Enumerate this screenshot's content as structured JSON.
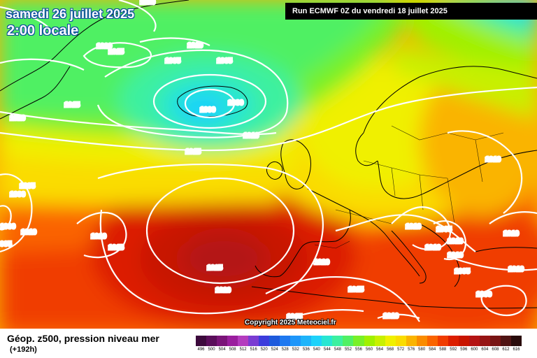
{
  "header": {
    "date_title": "samedi 26 juillet 2025",
    "time_title": "2:00 locale",
    "run_info": "Run ECMWF 0Z du vendredi 18 juillet 2025"
  },
  "copyright": "Copyright 2025 Meteociel.fr",
  "footer": {
    "parameter": "Géop. z500, pression niveau mer",
    "lead_time": "(+192h)"
  },
  "legend": {
    "labels": [
      "496",
      "500",
      "504",
      "508",
      "512",
      "516",
      "520",
      "524",
      "528",
      "532",
      "536",
      "540",
      "544",
      "548",
      "552",
      "556",
      "560",
      "564",
      "568",
      "572",
      "576",
      "580",
      "584",
      "588",
      "592",
      "596",
      "600",
      "604",
      "608",
      "612",
      "616"
    ],
    "colors": [
      "#3c0a3c",
      "#5a0e5a",
      "#7a1478",
      "#9a1e9e",
      "#b43cbe",
      "#7a3cd2",
      "#3c3cdc",
      "#1e5adc",
      "#1e78f0",
      "#1e96fa",
      "#1eb4fa",
      "#1ed2fa",
      "#28e6d2",
      "#3cf0a0",
      "#50f064",
      "#78f028",
      "#a0f000",
      "#c8f000",
      "#f0f000",
      "#fadc00",
      "#fab400",
      "#fa8c00",
      "#fa6400",
      "#f03c00",
      "#dc1e00",
      "#c81400",
      "#b41414",
      "#961414",
      "#781414",
      "#501414",
      "#280a0a"
    ]
  },
  "pressure_labels": [
    {
      "text": "1010",
      "id": "iso-1010-top"
    },
    {
      "text": "1020",
      "id": "iso-1020-a"
    },
    {
      "text": "1015",
      "id": "iso-1015-a"
    },
    {
      "text": "1010",
      "id": "iso-1010-b"
    },
    {
      "text": "1005",
      "id": "iso-1005-a"
    },
    {
      "text": "1005",
      "id": "iso-1005-b"
    },
    {
      "text": "1015",
      "id": "iso-1015-b"
    },
    {
      "text": "1010",
      "id": "iso-1010-c"
    },
    {
      "text": "1000",
      "id": "iso-1000-a"
    },
    {
      "text": "1000",
      "id": "iso-1000-b"
    },
    {
      "text": "1010",
      "id": "iso-1010-d"
    },
    {
      "text": "1015",
      "id": "iso-1015-c"
    },
    {
      "text": "1005",
      "id": "iso-1005-c"
    },
    {
      "text": "1000",
      "id": "iso-1000-c"
    },
    {
      "text": "1000",
      "id": "iso-1000-d"
    },
    {
      "text": "1010",
      "id": "iso-1010-e"
    },
    {
      "text": "005",
      "id": "iso-005"
    },
    {
      "text": "1010",
      "id": "iso-1010-f"
    },
    {
      "text": "1015",
      "id": "iso-1015-d"
    },
    {
      "text": "1025",
      "id": "iso-1025"
    },
    {
      "text": "1020",
      "id": "iso-1020-b"
    },
    {
      "text": "1020",
      "id": "iso-1020-c"
    },
    {
      "text": "1015",
      "id": "iso-1015-e"
    },
    {
      "text": "1015",
      "id": "iso-1015-f"
    },
    {
      "text": "1010",
      "id": "iso-1010-g"
    },
    {
      "text": "1010",
      "id": "iso-1010-h"
    },
    {
      "text": "1005",
      "id": "iso-1005-d"
    },
    {
      "text": "1010",
      "id": "iso-1010-i"
    },
    {
      "text": "1010",
      "id": "iso-1010-j"
    },
    {
      "text": "1005",
      "id": "iso-1005-e"
    },
    {
      "text": "1010",
      "id": "iso-1010-k"
    },
    {
      "text": "1010",
      "id": "iso-1010-l"
    },
    {
      "text": "1000",
      "id": "iso-1000-e"
    },
    {
      "text": "1010",
      "id": "iso-1010-m"
    },
    {
      "text": "1010",
      "id": "iso-1010-n"
    }
  ]
}
